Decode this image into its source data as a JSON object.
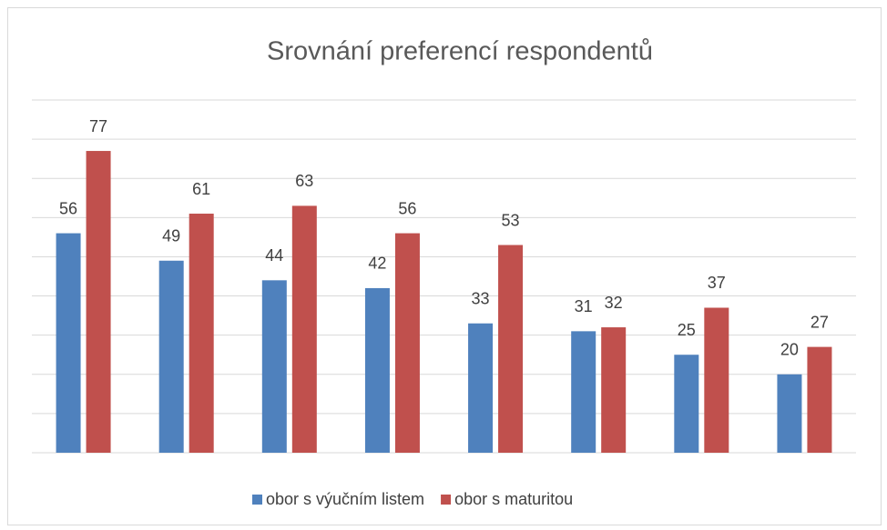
{
  "chart_data": {
    "type": "bar",
    "title": "Srovnání preferencí respondentů",
    "categories": [
      null,
      null,
      null,
      null,
      null,
      null,
      null,
      null
    ],
    "series": [
      {
        "name": "obor s výučním listem",
        "color": "#4f81bd",
        "values": [
          56,
          49,
          44,
          42,
          33,
          31,
          25,
          20
        ]
      },
      {
        "name": "obor s maturitou",
        "color": "#c0504d",
        "values": [
          77,
          61,
          63,
          56,
          53,
          32,
          37,
          27
        ]
      }
    ],
    "ylim": [
      0,
      90
    ],
    "yticks": [
      0,
      10,
      20,
      30,
      40,
      50,
      60,
      70,
      80,
      90
    ],
    "grid": true,
    "legend": "bottom"
  }
}
